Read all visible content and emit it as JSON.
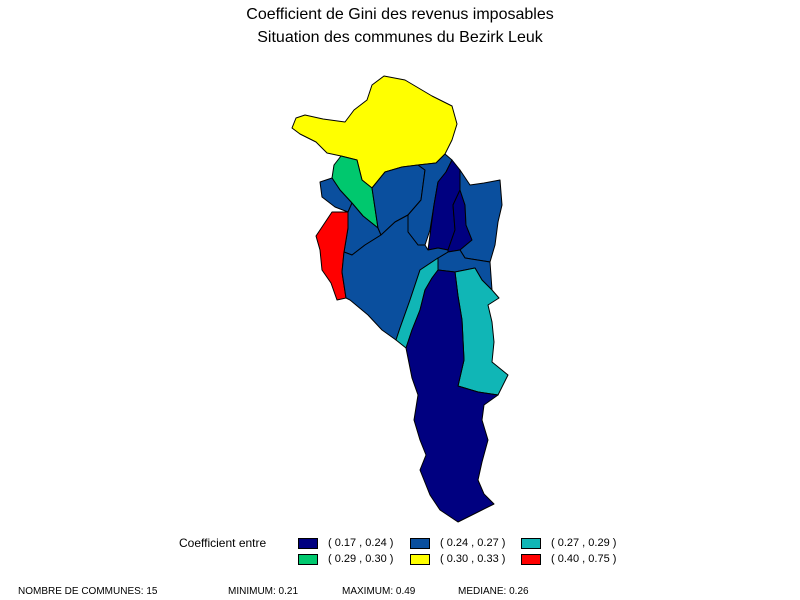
{
  "title": {
    "line1": "Coefficient de Gini des revenus imposables",
    "line2": "Situation des communes du Bezirk Leuk"
  },
  "classes": [
    {
      "id": "c1",
      "label": "( 0.17 , 0.24 )",
      "color": "#000080"
    },
    {
      "id": "c2",
      "label": "( 0.24 , 0.27 )",
      "color": "#0a4f9e"
    },
    {
      "id": "c3",
      "label": "( 0.27 , 0.29 )",
      "color": "#10b6b6"
    },
    {
      "id": "c4",
      "label": "( 0.29 , 0.30 )",
      "color": "#00c86e"
    },
    {
      "id": "c5",
      "label": "( 0.30 , 0.33 )",
      "color": "#ffff00"
    },
    {
      "id": "c6",
      "label": "( 0.40 , 0.75 )",
      "color": "#ff0000"
    }
  ],
  "legend": {
    "title": "Coefficient entre"
  },
  "footer": {
    "count": "NOMBRE DE COMMUNES: 15",
    "min": "MINIMUM: 0.21",
    "max": "MAXIMUM: 0.49",
    "median": "MEDIANE: 0.26"
  }
}
